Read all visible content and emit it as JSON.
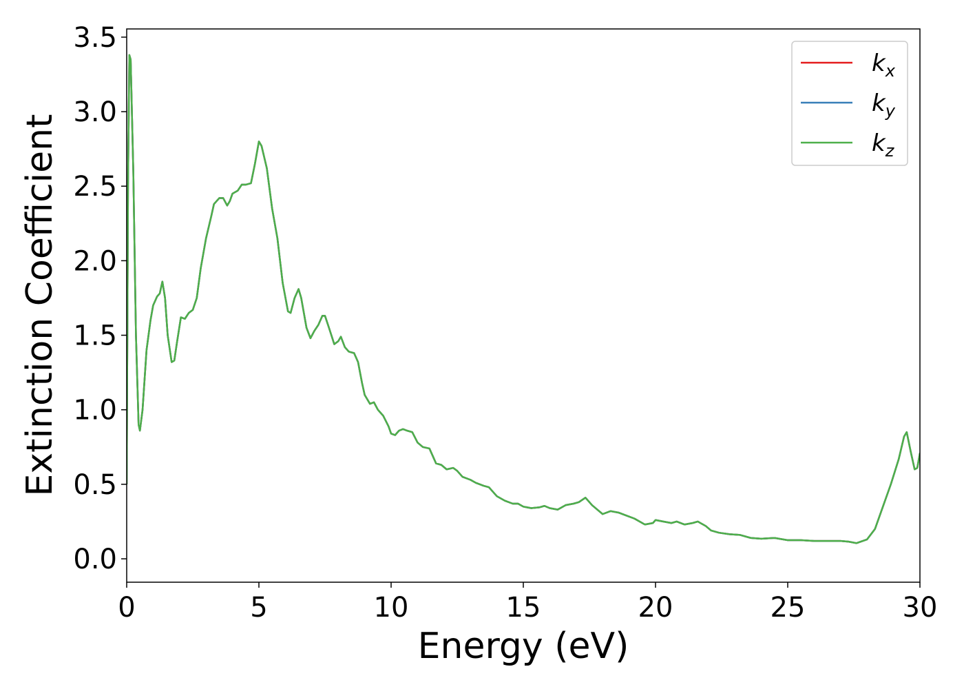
{
  "chart_data": {
    "type": "line",
    "xlabel": "Energy (eV)",
    "ylabel": "Extinction Coefficient",
    "xlim": [
      0,
      30
    ],
    "ylim": [
      -0.157,
      3.555
    ],
    "xticks": [
      0,
      5,
      10,
      15,
      20,
      25,
      30
    ],
    "yticks": [
      {
        "value": 0,
        "label": "0.0"
      },
      0.5,
      {
        "value": 1,
        "label": "1.0"
      },
      1.5,
      {
        "value": 2,
        "label": "2.0"
      },
      2.5,
      {
        "value": 3,
        "label": "3.0"
      },
      3.5
    ],
    "legend": "upper right",
    "x": [
      0,
      0.05,
      0.1,
      0.15,
      0.25,
      0.35,
      0.45,
      0.5,
      0.6,
      0.75,
      0.9,
      1.0,
      1.15,
      1.25,
      1.35,
      1.45,
      1.55,
      1.7,
      1.8,
      1.9,
      2.05,
      2.2,
      2.35,
      2.5,
      2.65,
      2.8,
      3.0,
      3.2,
      3.3,
      3.5,
      3.65,
      3.8,
      3.9,
      4.0,
      4.2,
      4.35,
      4.5,
      4.7,
      4.85,
      5.0,
      5.1,
      5.3,
      5.5,
      5.7,
      5.9,
      6.1,
      6.2,
      6.35,
      6.5,
      6.6,
      6.8,
      6.95,
      7.1,
      7.25,
      7.4,
      7.5,
      7.65,
      7.85,
      8.0,
      8.1,
      8.25,
      8.4,
      8.6,
      8.75,
      8.9,
      9.0,
      9.2,
      9.35,
      9.5,
      9.7,
      9.9,
      10.0,
      10.15,
      10.3,
      10.45,
      10.6,
      10.8,
      11.0,
      11.2,
      11.45,
      11.6,
      11.7,
      11.9,
      12.1,
      12.35,
      12.5,
      12.7,
      13.0,
      13.2,
      13.5,
      13.7,
      13.8,
      14.0,
      14.3,
      14.6,
      14.8,
      15.0,
      15.3,
      15.6,
      15.8,
      16.0,
      16.3,
      16.6,
      16.9,
      17.1,
      17.35,
      17.6,
      17.8,
      18.0,
      18.3,
      18.6,
      18.9,
      19.2,
      19.6,
      19.9,
      20.0,
      20.3,
      20.6,
      20.8,
      21.1,
      21.4,
      21.6,
      21.9,
      22.1,
      22.4,
      22.8,
      23.2,
      23.6,
      24.0,
      24.5,
      25.0,
      25.5,
      26.0,
      26.5,
      27.0,
      27.3,
      27.6,
      28.0,
      28.3,
      28.6,
      28.9,
      29.2,
      29.4,
      29.5,
      29.65,
      29.8,
      29.9,
      30.0
    ],
    "series": [
      {
        "name": "kx",
        "color": "#e41a1c",
        "values": [
          0.5,
          2.5,
          3.38,
          3.35,
          2.6,
          1.5,
          0.9,
          0.86,
          1.0,
          1.4,
          1.6,
          1.7,
          1.76,
          1.78,
          1.86,
          1.75,
          1.5,
          1.32,
          1.33,
          1.45,
          1.62,
          1.61,
          1.65,
          1.67,
          1.75,
          1.95,
          2.15,
          2.3,
          2.38,
          2.42,
          2.42,
          2.37,
          2.4,
          2.45,
          2.47,
          2.51,
          2.51,
          2.52,
          2.65,
          2.8,
          2.77,
          2.62,
          2.35,
          2.15,
          1.85,
          1.66,
          1.65,
          1.75,
          1.81,
          1.75,
          1.55,
          1.48,
          1.53,
          1.57,
          1.63,
          1.63,
          1.55,
          1.44,
          1.46,
          1.49,
          1.42,
          1.39,
          1.38,
          1.32,
          1.18,
          1.1,
          1.04,
          1.05,
          1.0,
          0.96,
          0.89,
          0.84,
          0.83,
          0.86,
          0.87,
          0.86,
          0.85,
          0.78,
          0.75,
          0.74,
          0.68,
          0.64,
          0.63,
          0.6,
          0.61,
          0.59,
          0.55,
          0.53,
          0.51,
          0.49,
          0.48,
          0.46,
          0.42,
          0.39,
          0.37,
          0.37,
          0.35,
          0.34,
          0.345,
          0.355,
          0.34,
          0.33,
          0.36,
          0.37,
          0.38,
          0.41,
          0.36,
          0.33,
          0.3,
          0.32,
          0.31,
          0.29,
          0.27,
          0.23,
          0.24,
          0.26,
          0.25,
          0.24,
          0.25,
          0.23,
          0.24,
          0.25,
          0.22,
          0.19,
          0.175,
          0.165,
          0.16,
          0.14,
          0.135,
          0.14,
          0.125,
          0.125,
          0.12,
          0.12,
          0.12,
          0.115,
          0.105,
          0.13,
          0.2,
          0.35,
          0.5,
          0.67,
          0.82,
          0.85,
          0.72,
          0.6,
          0.61,
          0.71
        ]
      },
      {
        "name": "ky",
        "color": "#377eb8",
        "values": [
          0.5,
          2.5,
          3.38,
          3.35,
          2.6,
          1.5,
          0.9,
          0.86,
          1.0,
          1.4,
          1.6,
          1.7,
          1.76,
          1.78,
          1.86,
          1.75,
          1.5,
          1.32,
          1.33,
          1.45,
          1.62,
          1.61,
          1.65,
          1.67,
          1.75,
          1.95,
          2.15,
          2.3,
          2.38,
          2.42,
          2.42,
          2.37,
          2.4,
          2.45,
          2.47,
          2.51,
          2.51,
          2.52,
          2.65,
          2.8,
          2.77,
          2.62,
          2.35,
          2.15,
          1.85,
          1.66,
          1.65,
          1.75,
          1.81,
          1.75,
          1.55,
          1.48,
          1.53,
          1.57,
          1.63,
          1.63,
          1.55,
          1.44,
          1.46,
          1.49,
          1.42,
          1.39,
          1.38,
          1.32,
          1.18,
          1.1,
          1.04,
          1.05,
          1.0,
          0.96,
          0.89,
          0.84,
          0.83,
          0.86,
          0.87,
          0.86,
          0.85,
          0.78,
          0.75,
          0.74,
          0.68,
          0.64,
          0.63,
          0.6,
          0.61,
          0.59,
          0.55,
          0.53,
          0.51,
          0.49,
          0.48,
          0.46,
          0.42,
          0.39,
          0.37,
          0.37,
          0.35,
          0.34,
          0.345,
          0.355,
          0.34,
          0.33,
          0.36,
          0.37,
          0.38,
          0.41,
          0.36,
          0.33,
          0.3,
          0.32,
          0.31,
          0.29,
          0.27,
          0.23,
          0.24,
          0.26,
          0.25,
          0.24,
          0.25,
          0.23,
          0.24,
          0.25,
          0.22,
          0.19,
          0.175,
          0.165,
          0.16,
          0.14,
          0.135,
          0.14,
          0.125,
          0.125,
          0.12,
          0.12,
          0.12,
          0.115,
          0.105,
          0.13,
          0.2,
          0.35,
          0.5,
          0.67,
          0.82,
          0.85,
          0.72,
          0.6,
          0.61,
          0.71
        ]
      },
      {
        "name": "kz",
        "color": "#4daf4a",
        "values": [
          0.5,
          2.5,
          3.38,
          3.35,
          2.6,
          1.5,
          0.9,
          0.86,
          1.0,
          1.4,
          1.6,
          1.7,
          1.76,
          1.78,
          1.86,
          1.75,
          1.5,
          1.32,
          1.33,
          1.45,
          1.62,
          1.61,
          1.65,
          1.67,
          1.75,
          1.95,
          2.15,
          2.3,
          2.38,
          2.42,
          2.42,
          2.37,
          2.4,
          2.45,
          2.47,
          2.51,
          2.51,
          2.52,
          2.65,
          2.8,
          2.77,
          2.62,
          2.35,
          2.15,
          1.85,
          1.66,
          1.65,
          1.75,
          1.81,
          1.75,
          1.55,
          1.48,
          1.53,
          1.57,
          1.63,
          1.63,
          1.55,
          1.44,
          1.46,
          1.49,
          1.42,
          1.39,
          1.38,
          1.32,
          1.18,
          1.1,
          1.04,
          1.05,
          1.0,
          0.96,
          0.89,
          0.84,
          0.83,
          0.86,
          0.87,
          0.86,
          0.85,
          0.78,
          0.75,
          0.74,
          0.68,
          0.64,
          0.63,
          0.6,
          0.61,
          0.59,
          0.55,
          0.53,
          0.51,
          0.49,
          0.48,
          0.46,
          0.42,
          0.39,
          0.37,
          0.37,
          0.35,
          0.34,
          0.345,
          0.355,
          0.34,
          0.33,
          0.36,
          0.37,
          0.38,
          0.41,
          0.36,
          0.33,
          0.3,
          0.32,
          0.31,
          0.29,
          0.27,
          0.23,
          0.24,
          0.26,
          0.25,
          0.24,
          0.25,
          0.23,
          0.24,
          0.25,
          0.22,
          0.19,
          0.175,
          0.165,
          0.16,
          0.14,
          0.135,
          0.14,
          0.125,
          0.125,
          0.12,
          0.12,
          0.12,
          0.115,
          0.105,
          0.13,
          0.2,
          0.35,
          0.5,
          0.67,
          0.82,
          0.85,
          0.72,
          0.6,
          0.61,
          0.71
        ]
      }
    ]
  }
}
